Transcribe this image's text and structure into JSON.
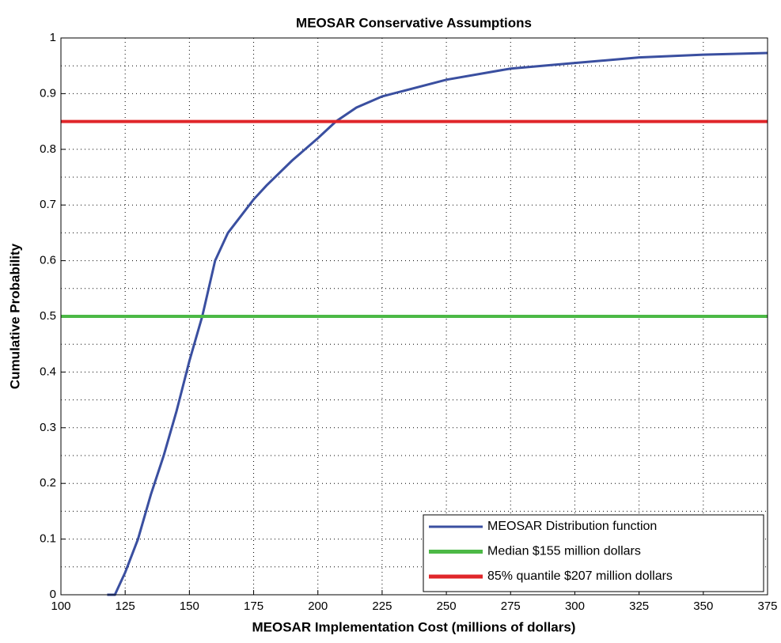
{
  "chart_data": {
    "type": "line",
    "title": "MEOSAR Conservative Assumptions",
    "x_label": "MEOSAR Implementation Cost (millions of dollars)",
    "y_label": "Cumulative Probability",
    "xlim": [
      100,
      375
    ],
    "xticks": [
      100,
      125,
      150,
      175,
      200,
      225,
      250,
      275,
      300,
      325,
      350,
      375
    ],
    "ylim": [
      0,
      1
    ],
    "yticks": [
      0,
      0.1,
      0.2,
      0.3,
      0.4,
      0.5,
      0.6,
      0.7,
      0.8,
      0.9,
      1
    ],
    "yminorticks": [
      0.05,
      0.15,
      0.25,
      0.35,
      0.45,
      0.55,
      0.65,
      0.75,
      0.85,
      0.95
    ],
    "grid": true,
    "legend": "lower right",
    "series": [
      {
        "name": "MEOSAR Distribution function",
        "color": "#3a4fa0",
        "x": [
          118,
          121,
          123,
          125,
          130,
          135,
          140,
          145,
          150,
          155,
          160,
          165,
          170,
          175,
          180,
          190,
          200,
          207,
          215,
          225,
          250,
          275,
          300,
          325,
          350,
          375
        ],
        "values": [
          0,
          0,
          0.02,
          0.04,
          0.1,
          0.18,
          0.25,
          0.33,
          0.42,
          0.5,
          0.6,
          0.65,
          0.68,
          0.71,
          0.735,
          0.78,
          0.82,
          0.85,
          0.875,
          0.895,
          0.925,
          0.945,
          0.955,
          0.965,
          0.97,
          0.973
        ]
      },
      {
        "name": "Median $155 million dollars",
        "color": "#4cb946",
        "x": [
          100,
          375
        ],
        "values": [
          0.5,
          0.5
        ]
      },
      {
        "name": "85% quantile $207 million dollars",
        "color": "#e0262a",
        "x": [
          100,
          375
        ],
        "values": [
          0.85,
          0.85
        ]
      }
    ]
  }
}
